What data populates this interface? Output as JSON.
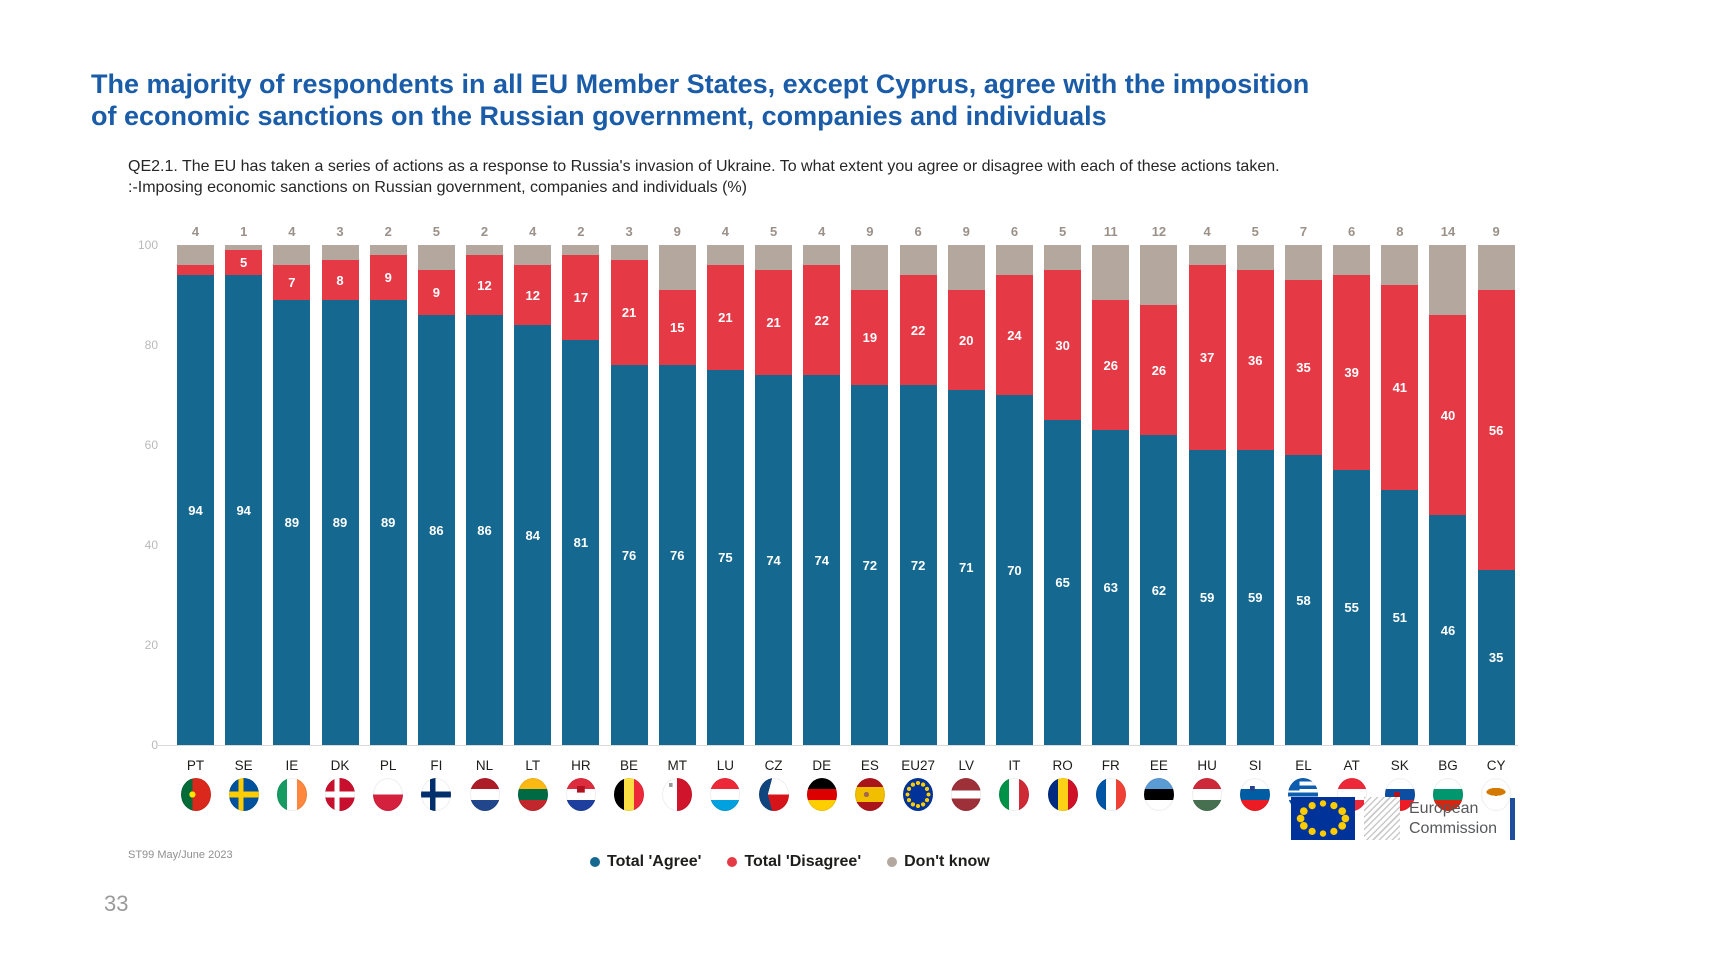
{
  "header": {
    "line1": "The majority of respondents in all EU Member States, except Cyprus, agree with the imposition",
    "line2": "of economic sanctions on the Russian government, companies and individuals",
    "color": "#1a5ca8"
  },
  "subtitle": {
    "line1": "QE2.1. The EU has taken a series of actions as a response to Russia's invasion of Ukraine. To what extent you agree or disagree with each of these actions taken.",
    "line2": ":-Imposing economic sanctions on Russian government, companies and individuals (%)"
  },
  "source": "ST99 May/June 2023",
  "page_number": "33",
  "logo": {
    "line1": "European",
    "line2": "Commission"
  },
  "colors": {
    "agree": "#15688f",
    "disagree": "#e63946",
    "dont_know": "#b3a79e",
    "dont_know_label": "#9b9189",
    "axis_label": "#b9b9b9",
    "title_blue": "#1a5ca8",
    "eu_flag_blue": "#003399",
    "eu_star_yellow": "#ffcc00"
  },
  "chart_data": {
    "type": "bar",
    "stacked": true,
    "title": "QE2.1. Imposing economic sanctions on Russian government, companies and individuals (%)",
    "xlabel": "",
    "ylabel": "",
    "ylim": [
      0,
      100
    ],
    "yticks": [
      0,
      20,
      40,
      60,
      80,
      100
    ],
    "grid": false,
    "legend_position": "bottom-center",
    "categories": [
      "PT",
      "SE",
      "IE",
      "DK",
      "PL",
      "FI",
      "NL",
      "LT",
      "HR",
      "BE",
      "MT",
      "LU",
      "CZ",
      "DE",
      "ES",
      "EU27",
      "LV",
      "IT",
      "RO",
      "FR",
      "EE",
      "HU",
      "SI",
      "EL",
      "AT",
      "SK",
      "BG",
      "CY"
    ],
    "series": [
      {
        "name": "Total 'Agree'",
        "color": "#15688f",
        "label_position": "inside-center",
        "values": [
          94,
          94,
          89,
          89,
          89,
          86,
          86,
          84,
          81,
          76,
          76,
          75,
          74,
          74,
          72,
          72,
          71,
          70,
          65,
          63,
          62,
          59,
          59,
          58,
          55,
          51,
          46,
          35
        ]
      },
      {
        "name": "Total 'Disagree'",
        "color": "#e63946",
        "label_position": "inside-center",
        "label_hidden_categories": [
          "PT"
        ],
        "values": [
          2,
          5,
          7,
          8,
          9,
          9,
          12,
          12,
          17,
          21,
          15,
          21,
          21,
          22,
          19,
          22,
          20,
          24,
          30,
          26,
          26,
          37,
          36,
          35,
          39,
          41,
          40,
          56
        ]
      },
      {
        "name": "Don't know",
        "color": "#b3a79e",
        "label_position": "above-bar",
        "values": [
          4,
          1,
          4,
          3,
          2,
          5,
          2,
          4,
          2,
          3,
          9,
          4,
          5,
          4,
          9,
          6,
          9,
          6,
          5,
          11,
          12,
          4,
          5,
          7,
          6,
          8,
          14,
          9
        ]
      }
    ]
  },
  "flags": {
    "PT": "radial-gradient(circle at 38% 50%, #ffe600 0 12%, rgba(0,0,0,0) 13%), linear-gradient(90deg, #046a38 0 38%, #da291c 38%)",
    "SE": "linear-gradient(90deg, rgba(0,0,0,0) 0 32%, #fecc02 32% 48%, rgba(0,0,0,0) 48%), linear-gradient(180deg, rgba(0,0,0,0) 0 41%, #fecc02 41% 59%, rgba(0,0,0,0) 59%), linear-gradient(#01529c, #01529c)",
    "IE": "linear-gradient(90deg, #169b62 0 33%, #ffffff 33% 67%, #ff883e 67%)",
    "DK": "linear-gradient(90deg, rgba(0,0,0,0) 0 32%, #ffffff 32% 48%, rgba(0,0,0,0) 48%), linear-gradient(180deg, rgba(0,0,0,0) 0 41%, #ffffff 41% 59%, rgba(0,0,0,0) 59%), linear-gradient(#c8102e, #c8102e)",
    "PL": "linear-gradient(180deg, #ffffff 0 50%, #d4213d 50%)",
    "FI": "linear-gradient(90deg, rgba(0,0,0,0) 0 30%, #002f6c 30% 48%, rgba(0,0,0,0) 48%), linear-gradient(180deg, rgba(0,0,0,0) 0 41%, #002f6c 41% 59%, rgba(0,0,0,0) 59%), linear-gradient(#ffffff, #ffffff)",
    "NL": "linear-gradient(180deg, #ae1c28 0 33%, #ffffff 33% 67%, #21468b 67%)",
    "LT": "linear-gradient(180deg, #fdb913 0 33%, #006a44 33% 67%, #c1272d 67%)",
    "HR": "linear-gradient(#b01320, #b01320) 50% 30% / 26% 20% no-repeat, linear-gradient(180deg, #dd2c3e 0 33%, #ffffff 33% 67%, #1e3f9e 67%)",
    "BE": "linear-gradient(90deg, #000000 0 33%, #fae042 33% 67%, #ed2939 67%)",
    "MT": "linear-gradient(#9a9a9a, #9a9a9a) 25% 18% / 12% 12% no-repeat, linear-gradient(90deg, #ffffff 0 50%, #cf142b 50%)",
    "LU": "linear-gradient(180deg, #ed2939 0 33%, #ffffff 33% 67%, #00a1de 67%)",
    "CZ": "linear-gradient(105deg, #11457e 0 38%, rgba(0,0,0,0) 38.5%) 0 0 / 100% 52% no-repeat, linear-gradient(75deg, #11457e 0 38%, rgba(0,0,0,0) 38.5%) 0 100% / 100% 52% no-repeat, linear-gradient(180deg, #ffffff 0 50%, #d7141a 50%)",
    "DE": "linear-gradient(180deg, #000000 0 33%, #dd0000 33% 67%, #ffce00 67%)",
    "ES": "radial-gradient(circle at 38% 50%, #a56a4d 0 10%, rgba(0,0,0,0) 11%), linear-gradient(180deg, #aa151b 0 27%, #f1bf00 27% 73%, #aa151b 73%)",
    "EU27": "radial-gradient(circle at 50% 15%, #ffcc00 0 6%, rgba(0,0,0,0) 7%), radial-gradient(circle at 67% 20%, #ffcc00 0 6%, rgba(0,0,0,0) 7%), radial-gradient(circle at 80% 33%, #ffcc00 0 6%, rgba(0,0,0,0) 7%), radial-gradient(circle at 85% 50%, #ffcc00 0 6%, rgba(0,0,0,0) 7%), radial-gradient(circle at 80% 67%, #ffcc00 0 6%, rgba(0,0,0,0) 7%), radial-gradient(circle at 67% 80%, #ffcc00 0 6%, rgba(0,0,0,0) 7%), radial-gradient(circle at 50% 85%, #ffcc00 0 6%, rgba(0,0,0,0) 7%), radial-gradient(circle at 33% 80%, #ffcc00 0 6%, rgba(0,0,0,0) 7%), radial-gradient(circle at 20% 67%, #ffcc00 0 6%, rgba(0,0,0,0) 7%), radial-gradient(circle at 15% 50%, #ffcc00 0 6%, rgba(0,0,0,0) 7%), radial-gradient(circle at 20% 33%, #ffcc00 0 6%, rgba(0,0,0,0) 7%), radial-gradient(circle at 33% 20%, #ffcc00 0 6%, rgba(0,0,0,0) 7%), linear-gradient(#003399, #003399)",
    "LV": "linear-gradient(180deg, #9e3039 0 38%, #ffffff 38% 62%, #9e3039 62%)",
    "IT": "linear-gradient(90deg, #009246 0 33%, #ffffff 33% 67%, #ce2b37 67%)",
    "RO": "linear-gradient(90deg, #002b7f 0 33%, #fcd116 33% 67%, #ce1126 67%)",
    "FR": "linear-gradient(90deg, #0055a4 0 33%, #ffffff 33% 67%, #ef4135 67%)",
    "EE": "linear-gradient(180deg, #5b9bd5 0 33%, #000000 33% 67%, #ffffff 67%)",
    "HU": "linear-gradient(180deg, #ce2939 0 33%, #ffffff 33% 67%, #477050 67%)",
    "SI": "linear-gradient(#27408b, #27408b) 38% 30% / 16% 16% no-repeat, linear-gradient(180deg, #ffffff 0 33%, #005da4 33% 67%, #ed1c24 67%)",
    "EL": "conic-gradient(from 270deg at 38% 38%, #0d5eaf 0 90deg, rgba(0,0,0,0) 90deg), repeating-linear-gradient(180deg, #0d5eaf 0 11.1%, #ffffff 11.1% 22.2%)",
    "AT": "linear-gradient(180deg, #ed2939 0 33%, #ffffff 33% 67%, #ed2939 67%)",
    "SK": "linear-gradient(#b01320, #b01320) 38% 55% / 20% 24% no-repeat, linear-gradient(180deg, #ffffff 0 33%, #0b4ea2 33% 67%, #ee1c25 67%)",
    "BG": "linear-gradient(180deg, #ffffff 0 33%, #00966e 33% 67%, #d62612 67%)",
    "CY": "radial-gradient(ellipse 32% 12% at 50% 42%, #d57800 0 99%, rgba(0,0,0,0) 100%), linear-gradient(#ffffff, #ffffff)"
  }
}
